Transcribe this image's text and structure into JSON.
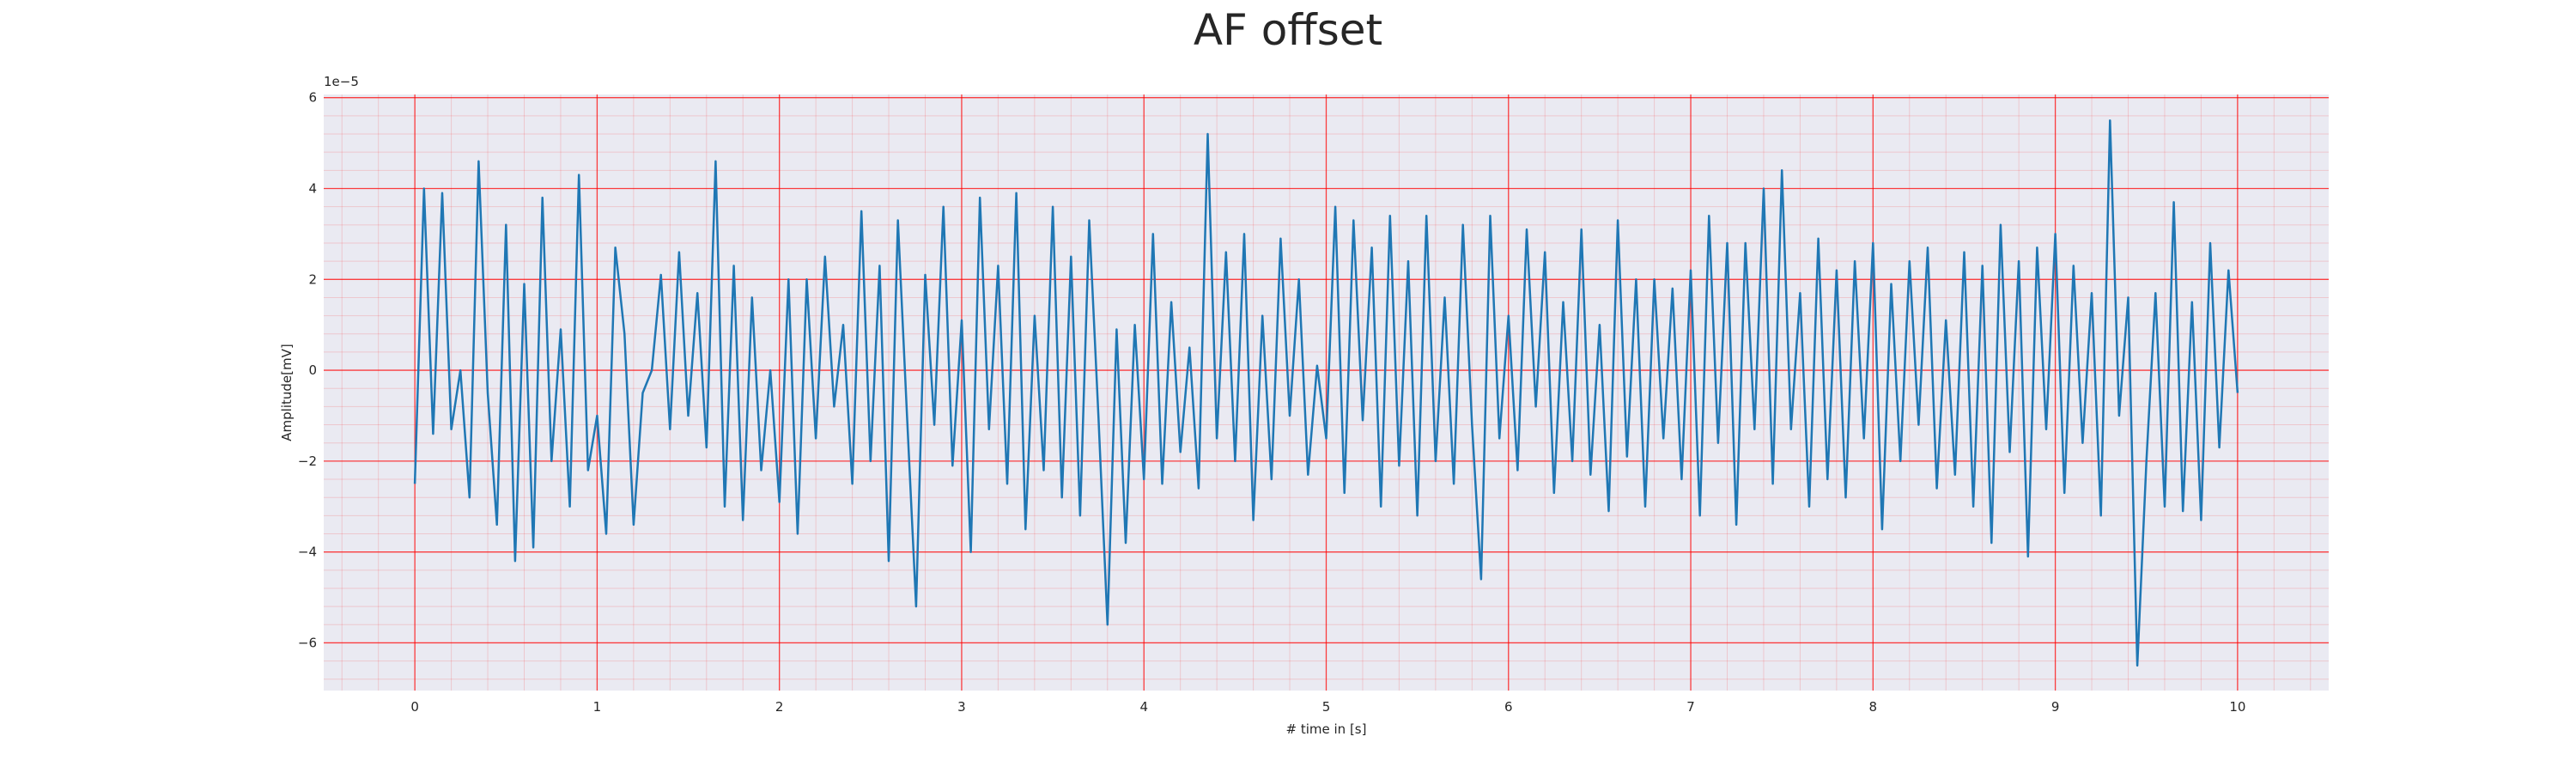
{
  "chart_data": {
    "type": "line",
    "title": "AF offset",
    "xlabel": "# time in [s]",
    "ylabel": "Amplitude[mV]",
    "y_offset_label": "1e−5",
    "xlim": [
      -0.5,
      10.5
    ],
    "ylim": [
      -7.05,
      6.07
    ],
    "xticks": [
      0,
      1,
      2,
      3,
      4,
      5,
      6,
      7,
      8,
      9,
      10
    ],
    "yticks": [
      {
        "value": -6,
        "label": "−6"
      },
      {
        "value": -4,
        "label": "−4"
      },
      {
        "value": -2,
        "label": "−2"
      },
      0,
      2,
      4,
      6
    ],
    "grid": true,
    "grid_color": "#ff0000",
    "minor_grid": true,
    "background": "#eaeaf2",
    "series": [
      {
        "color": "#1f77b4",
        "x": [
          0,
          0.05,
          0.1,
          0.15,
          0.2,
          0.25,
          0.3,
          0.35,
          0.4,
          0.45,
          0.5,
          0.55,
          0.6,
          0.65,
          0.7,
          0.75,
          0.8,
          0.85,
          0.9,
          0.95,
          1,
          1.05,
          1.1,
          1.15,
          1.2,
          1.25,
          1.3,
          1.35,
          1.4,
          1.45,
          1.5,
          1.55,
          1.6,
          1.65,
          1.7,
          1.75,
          1.8,
          1.85,
          1.9,
          1.95,
          2,
          2.05,
          2.1,
          2.15,
          2.2,
          2.25,
          2.3,
          2.35,
          2.4,
          2.45,
          2.5,
          2.55,
          2.6,
          2.65,
          2.7,
          2.75,
          2.8,
          2.85,
          2.9,
          2.95,
          3,
          3.05,
          3.1,
          3.15,
          3.2,
          3.25,
          3.3,
          3.35,
          3.4,
          3.45,
          3.5,
          3.55,
          3.6,
          3.65,
          3.7,
          3.75,
          3.8,
          3.85,
          3.9,
          3.95,
          4,
          4.05,
          4.1,
          4.15,
          4.2,
          4.25,
          4.3,
          4.35,
          4.4,
          4.45,
          4.5,
          4.55,
          4.6,
          4.65,
          4.7,
          4.75,
          4.8,
          4.85,
          4.9,
          4.95,
          5,
          5.05,
          5.1,
          5.15,
          5.2,
          5.25,
          5.3,
          5.35,
          5.4,
          5.45,
          5.5,
          5.55,
          5.6,
          5.65,
          5.7,
          5.75,
          5.8,
          5.85,
          5.9,
          5.95,
          6,
          6.05,
          6.1,
          6.15,
          6.2,
          6.25,
          6.3,
          6.35,
          6.4,
          6.45,
          6.5,
          6.55,
          6.6,
          6.65,
          6.7,
          6.75,
          6.8,
          6.85,
          6.9,
          6.95,
          7,
          7.05,
          7.1,
          7.15,
          7.2,
          7.25,
          7.3,
          7.35,
          7.4,
          7.45,
          7.5,
          7.55,
          7.6,
          7.65,
          7.7,
          7.75,
          7.8,
          7.85,
          7.9,
          7.95,
          8,
          8.05,
          8.1,
          8.15,
          8.2,
          8.25,
          8.3,
          8.35,
          8.4,
          8.45,
          8.5,
          8.55,
          8.6,
          8.65,
          8.7,
          8.75,
          8.8,
          8.85,
          8.9,
          8.95,
          9,
          9.05,
          9.1,
          9.15,
          9.2,
          9.25,
          9.3,
          9.35,
          9.4,
          9.45,
          9.5,
          9.55,
          9.6,
          9.65,
          9.7,
          9.75,
          9.8,
          9.85,
          9.9,
          9.95,
          10
        ],
        "values": [
          -2.5,
          4.0,
          -1.4,
          3.9,
          -1.3,
          0.0,
          -2.8,
          4.6,
          -0.5,
          -3.4,
          3.2,
          -4.2,
          1.9,
          -3.9,
          3.8,
          -2.0,
          0.9,
          -3.0,
          4.3,
          -2.2,
          -1.0,
          -3.6,
          2.7,
          0.8,
          -3.4,
          -0.5,
          0.0,
          2.1,
          -1.3,
          2.6,
          -1.0,
          1.7,
          -1.7,
          4.6,
          -3.0,
          2.3,
          -3.3,
          1.6,
          -2.2,
          0.0,
          -2.9,
          2.0,
          -3.6,
          2.0,
          -1.5,
          2.5,
          -0.8,
          1.0,
          -2.5,
          3.5,
          -2.0,
          2.3,
          -4.2,
          3.3,
          -1.0,
          -5.2,
          2.1,
          -1.2,
          3.6,
          -2.1,
          1.1,
          -4.0,
          3.8,
          -1.3,
          2.3,
          -2.5,
          3.9,
          -3.5,
          1.2,
          -2.2,
          3.6,
          -2.8,
          2.5,
          -3.2,
          3.3,
          -1.0,
          -5.6,
          0.9,
          -3.8,
          1.0,
          -2.4,
          3.0,
          -2.5,
          1.5,
          -1.8,
          0.5,
          -2.6,
          5.2,
          -1.5,
          2.6,
          -2.0,
          3.0,
          -3.3,
          1.2,
          -2.4,
          2.9,
          -1.0,
          2.0,
          -2.3,
          0.1,
          -1.5,
          3.6,
          -2.7,
          3.3,
          -1.1,
          2.7,
          -3.0,
          3.4,
          -2.1,
          2.4,
          -3.2,
          3.4,
          -2.0,
          1.6,
          -2.5,
          3.2,
          -1.2,
          -4.6,
          3.4,
          -1.5,
          1.2,
          -2.2,
          3.1,
          -0.8,
          2.6,
          -2.7,
          1.5,
          -2.0,
          3.1,
          -2.3,
          1.0,
          -3.1,
          3.3,
          -1.9,
          2.0,
          -3.0,
          2.0,
          -1.5,
          1.8,
          -2.4,
          2.2,
          -3.2,
          3.4,
          -1.6,
          2.8,
          -3.4,
          2.8,
          -1.3,
          4.0,
          -2.5,
          4.4,
          -1.3,
          1.7,
          -3.0,
          2.9,
          -2.4,
          2.2,
          -2.8,
          2.4,
          -1.5,
          2.8,
          -3.5,
          1.9,
          -2.0,
          2.4,
          -1.2,
          2.7,
          -2.6,
          1.1,
          -2.3,
          2.6,
          -3.0,
          2.3,
          -3.8,
          3.2,
          -1.8,
          2.4,
          -4.1,
          2.7,
          -1.3,
          3.0,
          -2.7,
          2.3,
          -1.6,
          1.7,
          -3.2,
          5.5,
          -1.0,
          1.6,
          -6.5,
          -2.0,
          1.7,
          -3.0,
          3.7,
          -3.1,
          1.5,
          -3.3,
          2.8,
          -1.7,
          2.2,
          -0.5
        ]
      }
    ]
  }
}
